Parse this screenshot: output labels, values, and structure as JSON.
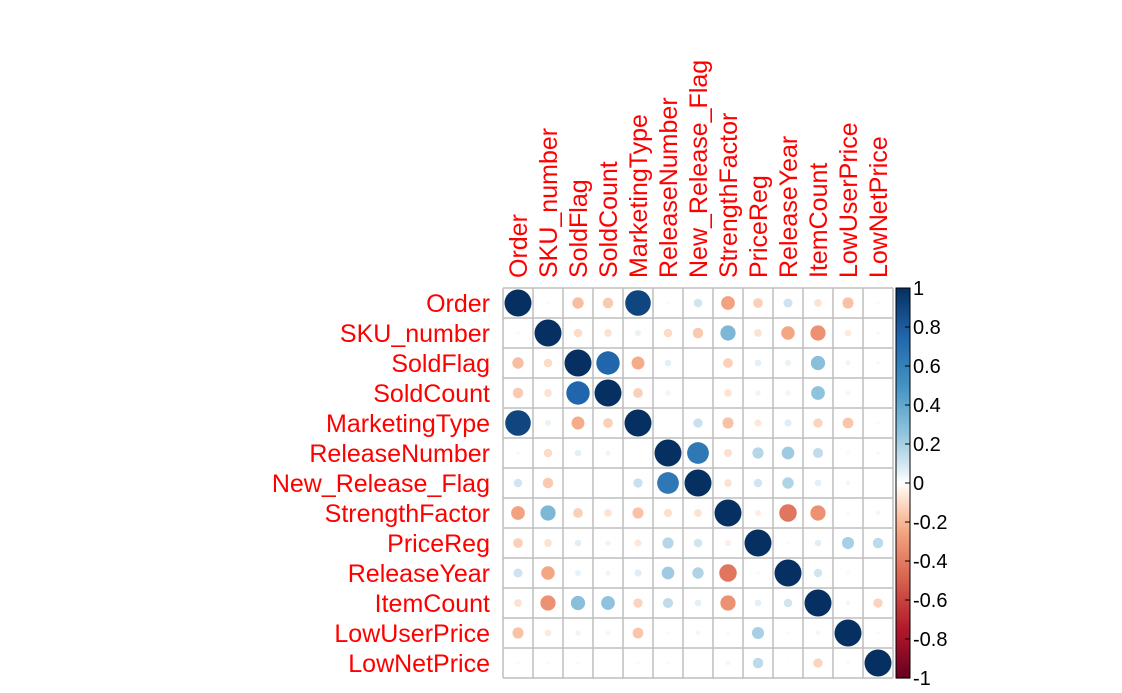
{
  "chart_data": {
    "type": "heatmap",
    "subtype": "correlation-circle-matrix",
    "variables": [
      "Order",
      "SKU_number",
      "SoldFlag",
      "SoldCount",
      "MarketingType",
      "ReleaseNumber",
      "New_Release_Flag",
      "StrengthFactor",
      "PriceReg",
      "ReleaseYear",
      "ItemCount",
      "LowUserPrice",
      "LowNetPrice"
    ],
    "matrix": [
      [
        1.0,
        -0.02,
        -0.18,
        -0.15,
        0.9,
        0.02,
        0.1,
        -0.26,
        -0.13,
        0.11,
        -0.08,
        -0.17,
        -0.02
      ],
      [
        -0.02,
        1.0,
        -0.1,
        -0.08,
        0.05,
        -0.1,
        -0.15,
        0.32,
        -0.08,
        -0.25,
        -0.32,
        -0.06,
        0.02
      ],
      [
        -0.18,
        -0.1,
        1.0,
        0.75,
        -0.23,
        0.06,
        0.0,
        -0.13,
        0.06,
        0.05,
        0.28,
        0.04,
        0.02
      ],
      [
        -0.15,
        -0.08,
        0.75,
        1.0,
        -0.13,
        0.04,
        0.0,
        -0.08,
        0.04,
        0.04,
        0.26,
        0.03,
        0.01
      ],
      [
        0.9,
        0.05,
        -0.23,
        -0.13,
        1.0,
        0.0,
        0.12,
        -0.17,
        -0.07,
        0.07,
        -0.12,
        -0.16,
        -0.02
      ],
      [
        0.02,
        -0.1,
        0.06,
        0.04,
        0.0,
        1.0,
        0.65,
        -0.09,
        0.17,
        0.22,
        0.14,
        0.02,
        0.02
      ],
      [
        0.1,
        -0.15,
        0.0,
        0.0,
        0.12,
        0.65,
        1.0,
        -0.08,
        0.1,
        0.18,
        0.06,
        0.03,
        0.01
      ],
      [
        -0.26,
        0.32,
        -0.13,
        -0.08,
        -0.17,
        -0.09,
        -0.08,
        1.0,
        -0.05,
        -0.42,
        -0.32,
        0.02,
        0.03
      ],
      [
        -0.13,
        -0.08,
        0.06,
        0.04,
        -0.07,
        0.17,
        0.1,
        -0.05,
        1.0,
        -0.02,
        0.06,
        0.2,
        0.15
      ],
      [
        0.11,
        -0.25,
        0.05,
        0.04,
        0.07,
        0.22,
        0.18,
        -0.42,
        -0.02,
        1.0,
        0.1,
        0.02,
        0.01
      ],
      [
        -0.08,
        -0.32,
        0.28,
        0.26,
        -0.12,
        0.14,
        0.06,
        -0.32,
        0.06,
        0.1,
        1.0,
        -0.03,
        -0.12
      ],
      [
        -0.17,
        -0.06,
        0.04,
        0.03,
        -0.16,
        0.02,
        0.03,
        0.02,
        0.2,
        0.02,
        -0.03,
        1.0,
        0.02
      ],
      [
        -0.02,
        0.02,
        0.02,
        0.01,
        -0.02,
        0.02,
        0.01,
        0.03,
        0.15,
        0.01,
        -0.12,
        0.02,
        1.0
      ]
    ],
    "color_scale": {
      "range": [
        -1,
        1
      ],
      "ticks": [
        "1",
        "0.8",
        "0.6",
        "0.4",
        "0.2",
        "0",
        "-0.2",
        "-0.4",
        "-0.6",
        "-0.8",
        "-1"
      ],
      "stops": [
        {
          "value": -1.0,
          "color": "#67001F"
        },
        {
          "value": -0.75,
          "color": "#B2182B"
        },
        {
          "value": -0.5,
          "color": "#D6604D"
        },
        {
          "value": -0.25,
          "color": "#F4A582"
        },
        {
          "value": -0.1,
          "color": "#FDDBC7"
        },
        {
          "value": 0.0,
          "color": "#FFFFFF"
        },
        {
          "value": 0.1,
          "color": "#D1E5F0"
        },
        {
          "value": 0.25,
          "color": "#92C5DE"
        },
        {
          "value": 0.5,
          "color": "#4393C3"
        },
        {
          "value": 0.75,
          "color": "#2166AC"
        },
        {
          "value": 1.0,
          "color": "#053061"
        }
      ],
      "position": "right"
    },
    "label_color": "#FF0000",
    "grid_color": "#BEBEBE",
    "grid": true,
    "title": ""
  }
}
